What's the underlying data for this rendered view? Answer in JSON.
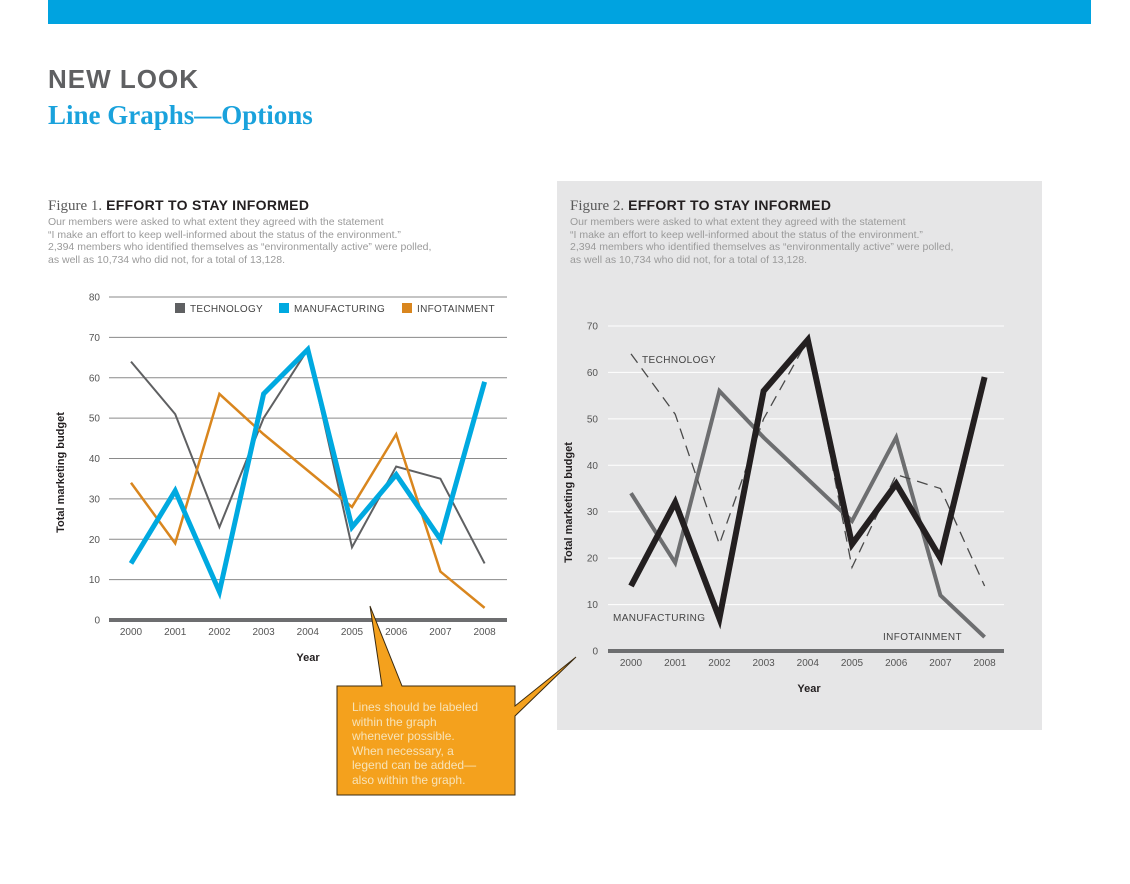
{
  "header": {
    "title": "NEW LOOK",
    "subtitle": "Line Graphs—Options"
  },
  "colors": {
    "accent_bar": "#00a3e0",
    "technology_fig1": "#5f6062",
    "manufacturing_fig1": "#00a9e0",
    "infotainment_fig1": "#d9861e",
    "technology_fig2": "#4a4a4a",
    "manufacturing_fig2": "#231f20",
    "infotainment_fig2": "#6d6e70",
    "panel_fig2": "#e6e6e7",
    "callout": "#f4a11d"
  },
  "figures": [
    {
      "label": "Figure 1.",
      "title": "EFFORT TO STAY INFORMED",
      "description": [
        "Our members were asked to what extent they agreed with the statement",
        "“I make an effort to keep well-informed about the status of the environment.”",
        "2,394 members who identified themselves as “environmentally active” were polled,",
        "as well as 10,734 who did not, for a total of 13,128."
      ]
    },
    {
      "label": "Figure 2.",
      "title": "EFFORT TO STAY INFORMED",
      "description": [
        "Our members were asked to what extent they agreed with the statement",
        "“I make an effort to keep well-informed about the status of the environment.”",
        "2,394 members who identified themselves as “environmentally active” were polled,",
        "as well as 10,734 who did not, for a total of 13,128."
      ]
    }
  ],
  "chart_data": [
    {
      "type": "line",
      "categories": [
        "2000",
        "2001",
        "2002",
        "2003",
        "2004",
        "2005",
        "2006",
        "2007",
        "2008"
      ],
      "series": [
        {
          "name": "TECHNOLOGY",
          "values": [
            64,
            51,
            23,
            50,
            67,
            18,
            38,
            35,
            14
          ]
        },
        {
          "name": "MANUFACTURING",
          "values": [
            14,
            32,
            7,
            56,
            67,
            23,
            36,
            20,
            59
          ]
        },
        {
          "name": "INFOTAINMENT",
          "values": [
            34,
            19,
            56,
            46,
            37,
            28,
            46,
            12,
            3
          ]
        }
      ],
      "yticks": [
        "0",
        "10",
        "20",
        "30",
        "40",
        "50",
        "60",
        "70",
        "80"
      ],
      "ylim": [
        0,
        80
      ],
      "xlabel": "Year",
      "ylabel": "Total marketing budget",
      "legend": "top",
      "grid": true
    },
    {
      "type": "line",
      "categories": [
        "2000",
        "2001",
        "2002",
        "2003",
        "2004",
        "2005",
        "2006",
        "2007",
        "2008"
      ],
      "series": [
        {
          "name": "TECHNOLOGY",
          "values": [
            64,
            51,
            23,
            50,
            67,
            18,
            38,
            35,
            14
          ],
          "style": "dashed"
        },
        {
          "name": "MANUFACTURING",
          "values": [
            14,
            32,
            7,
            56,
            67,
            23,
            36,
            20,
            59
          ],
          "style": "thick"
        },
        {
          "name": "INFOTAINMENT",
          "values": [
            34,
            19,
            56,
            46,
            37,
            28,
            46,
            12,
            3
          ],
          "style": "medium"
        }
      ],
      "yticks": [
        "0",
        "10",
        "20",
        "30",
        "40",
        "50",
        "60",
        "70"
      ],
      "ylim": [
        0,
        70
      ],
      "xlabel": "Year",
      "ylabel": "Total marketing budget",
      "legend": "direct labels on lines",
      "grid": true
    }
  ],
  "callout": {
    "lines": [
      "Lines should be labeled",
      "within the graph",
      "whenever possible.",
      "When necessary, a",
      "legend can be added—",
      "also within the graph."
    ]
  }
}
